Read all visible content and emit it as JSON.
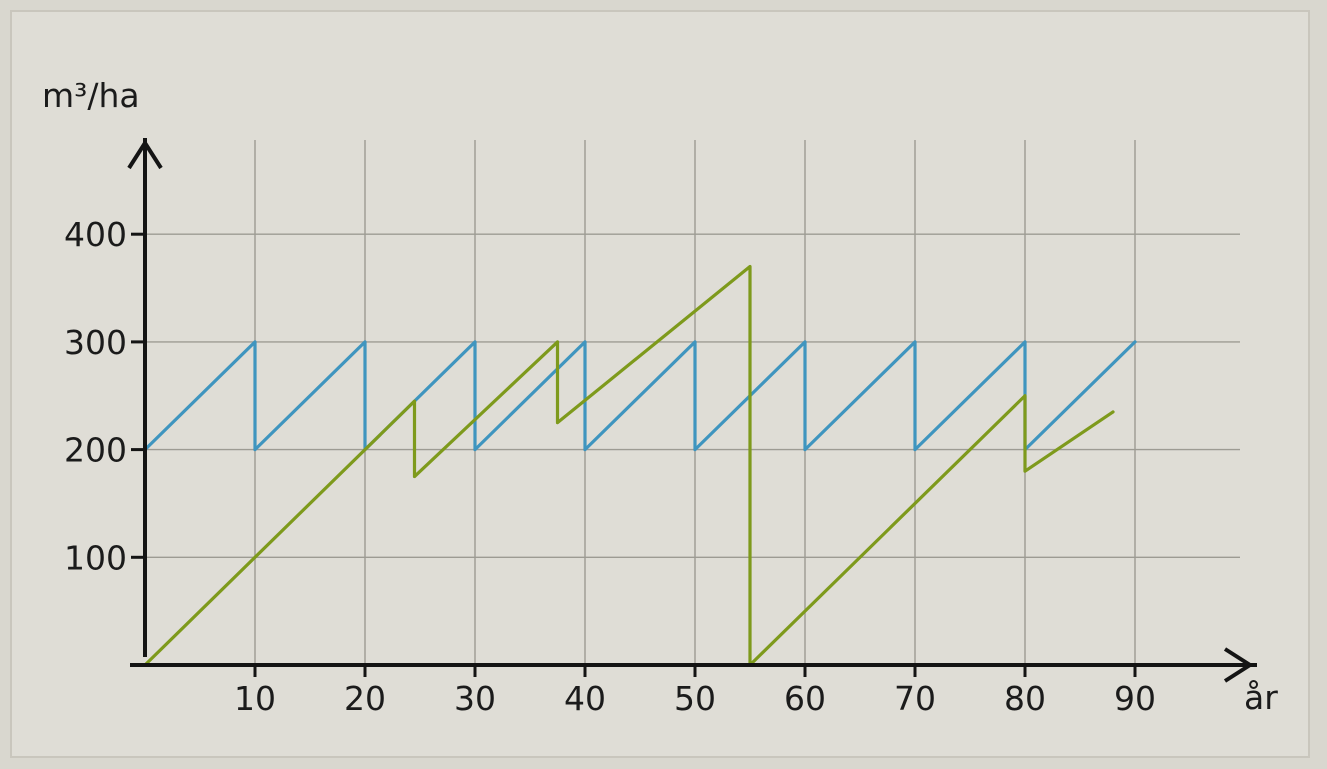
{
  "chart_data": {
    "type": "line",
    "ylabel": "m³/ha",
    "xlabel": "år",
    "xlim": [
      0,
      90
    ],
    "ylim": [
      0,
      400
    ],
    "x_ticks": [
      10,
      20,
      30,
      40,
      50,
      60,
      70,
      80,
      90
    ],
    "y_ticks": [
      100,
      200,
      300,
      400
    ],
    "grid": true,
    "series": [
      {
        "color": "#3f95bf",
        "points": [
          [
            0,
            200
          ],
          [
            10,
            300
          ],
          [
            10,
            200
          ],
          [
            20,
            300
          ],
          [
            20,
            200
          ],
          [
            30,
            300
          ],
          [
            30,
            200
          ],
          [
            40,
            300
          ],
          [
            40,
            200
          ],
          [
            50,
            300
          ],
          [
            50,
            200
          ],
          [
            60,
            300
          ],
          [
            60,
            200
          ],
          [
            70,
            300
          ],
          [
            70,
            200
          ],
          [
            80,
            300
          ],
          [
            80,
            200
          ],
          [
            90,
            300
          ]
        ]
      },
      {
        "color": "#7e9a1c",
        "points": [
          [
            0,
            0
          ],
          [
            24.5,
            245
          ],
          [
            24.5,
            175
          ],
          [
            37.5,
            300
          ],
          [
            37.5,
            225
          ],
          [
            55,
            370
          ],
          [
            55,
            0
          ],
          [
            80,
            250
          ],
          [
            80,
            180
          ],
          [
            88,
            235
          ]
        ]
      }
    ],
    "dashed_markers": [
      {
        "x": 55,
        "y_from": 0,
        "y_to": 370,
        "color": "#7a7a6a"
      }
    ]
  }
}
